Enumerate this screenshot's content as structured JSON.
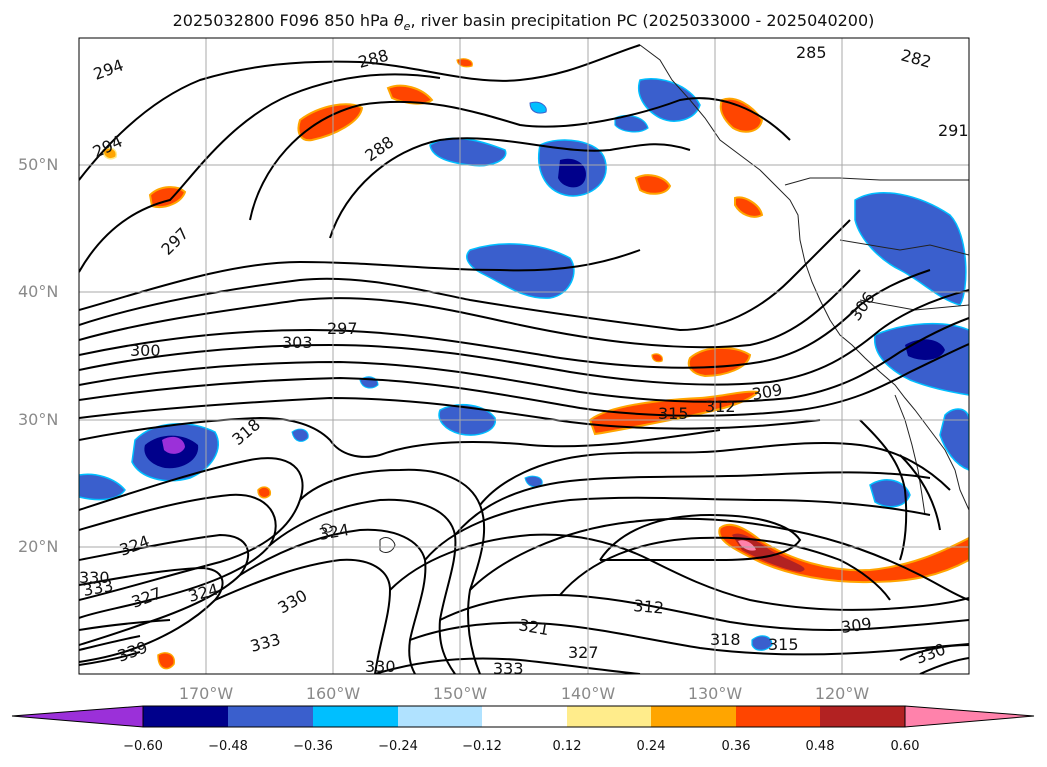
{
  "title": {
    "prefix": "2025032800 F096 850 hPa ",
    "symbol": "θ",
    "subscript": "e",
    "suffix": ", river basin precipitation PC (2025033000 - 2025040200)"
  },
  "map": {
    "projection": "lat-lon",
    "grid": true,
    "lat_labels": [
      "20°N",
      "30°N",
      "40°N",
      "50°N"
    ],
    "lon_labels": [
      "170°W",
      "160°W",
      "150°W",
      "140°W",
      "130°W",
      "120°W"
    ],
    "contour_labels": [
      "294",
      "294",
      "288",
      "288",
      "285",
      "282",
      "291",
      "297",
      "297",
      "300",
      "303",
      "306",
      "309",
      "312",
      "315",
      "318",
      "318",
      "324",
      "324",
      "324",
      "327",
      "327",
      "330",
      "330",
      "330",
      "333",
      "333",
      "333",
      "321",
      "312",
      "315",
      "309",
      "330",
      "339"
    ]
  },
  "colorbar": {
    "ticks": [
      "−0.60",
      "−0.48",
      "−0.36",
      "−0.24",
      "−0.12",
      "0.12",
      "0.24",
      "0.36",
      "0.48",
      "0.60"
    ],
    "colors": [
      "#9b30d9",
      "#00008b",
      "#3a5fcd",
      "#00bfff",
      "#b0e2ff",
      "#ffffff",
      "#ffec8b",
      "#ffa500",
      "#ff4500",
      "#b22222",
      "#ff82ab"
    ]
  }
}
